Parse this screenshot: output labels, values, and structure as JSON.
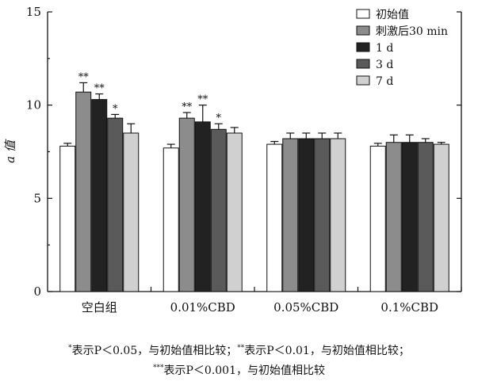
{
  "chart_data": {
    "type": "bar",
    "ylabel": "a 值",
    "ylim": [
      0,
      15
    ],
    "yticks": [
      "0",
      "5",
      "10",
      "15"
    ],
    "categories": [
      "空白组",
      "0.01%CBD",
      "0.05%CBD",
      "0.1%CBD"
    ],
    "series": [
      {
        "name": "初始值",
        "color": "#ffffff",
        "values": [
          7.8,
          7.7,
          7.9,
          7.8
        ],
        "errors": [
          0.15,
          0.2,
          0.15,
          0.15
        ],
        "sig": [
          "",
          "",
          "",
          ""
        ]
      },
      {
        "name": "刺激后30 min",
        "color": "#8c8c8c",
        "values": [
          10.7,
          9.3,
          8.2,
          8.0
        ],
        "errors": [
          0.5,
          0.3,
          0.3,
          0.4
        ],
        "sig": [
          "**",
          "**",
          "",
          ""
        ]
      },
      {
        "name": "1 d",
        "color": "#222222",
        "values": [
          10.3,
          9.1,
          8.2,
          8.0
        ],
        "errors": [
          0.3,
          0.9,
          0.3,
          0.4
        ],
        "sig": [
          "**",
          "**",
          "",
          ""
        ]
      },
      {
        "name": "3 d",
        "color": "#5a5a5a",
        "values": [
          9.3,
          8.7,
          8.2,
          8.0
        ],
        "errors": [
          0.2,
          0.3,
          0.3,
          0.2
        ],
        "sig": [
          "*",
          "*",
          "",
          ""
        ]
      },
      {
        "name": "7 d",
        "color": "#d0d0d0",
        "values": [
          8.5,
          8.5,
          8.2,
          7.9
        ],
        "errors": [
          0.5,
          0.3,
          0.3,
          0.1
        ],
        "sig": [
          "",
          "",
          "",
          ""
        ]
      }
    ],
    "legend_position": "top-right",
    "grid": false
  },
  "footnote": {
    "line1_a_mark": "*",
    "line1_a": "表示P＜0.05，与初始值相比较；",
    "line1_b_mark": "**",
    "line1_b": "表示P＜0.01，与初始值相比较；",
    "line2_mark": "***",
    "line2": "表示P＜0.001，与初始值相比较"
  }
}
